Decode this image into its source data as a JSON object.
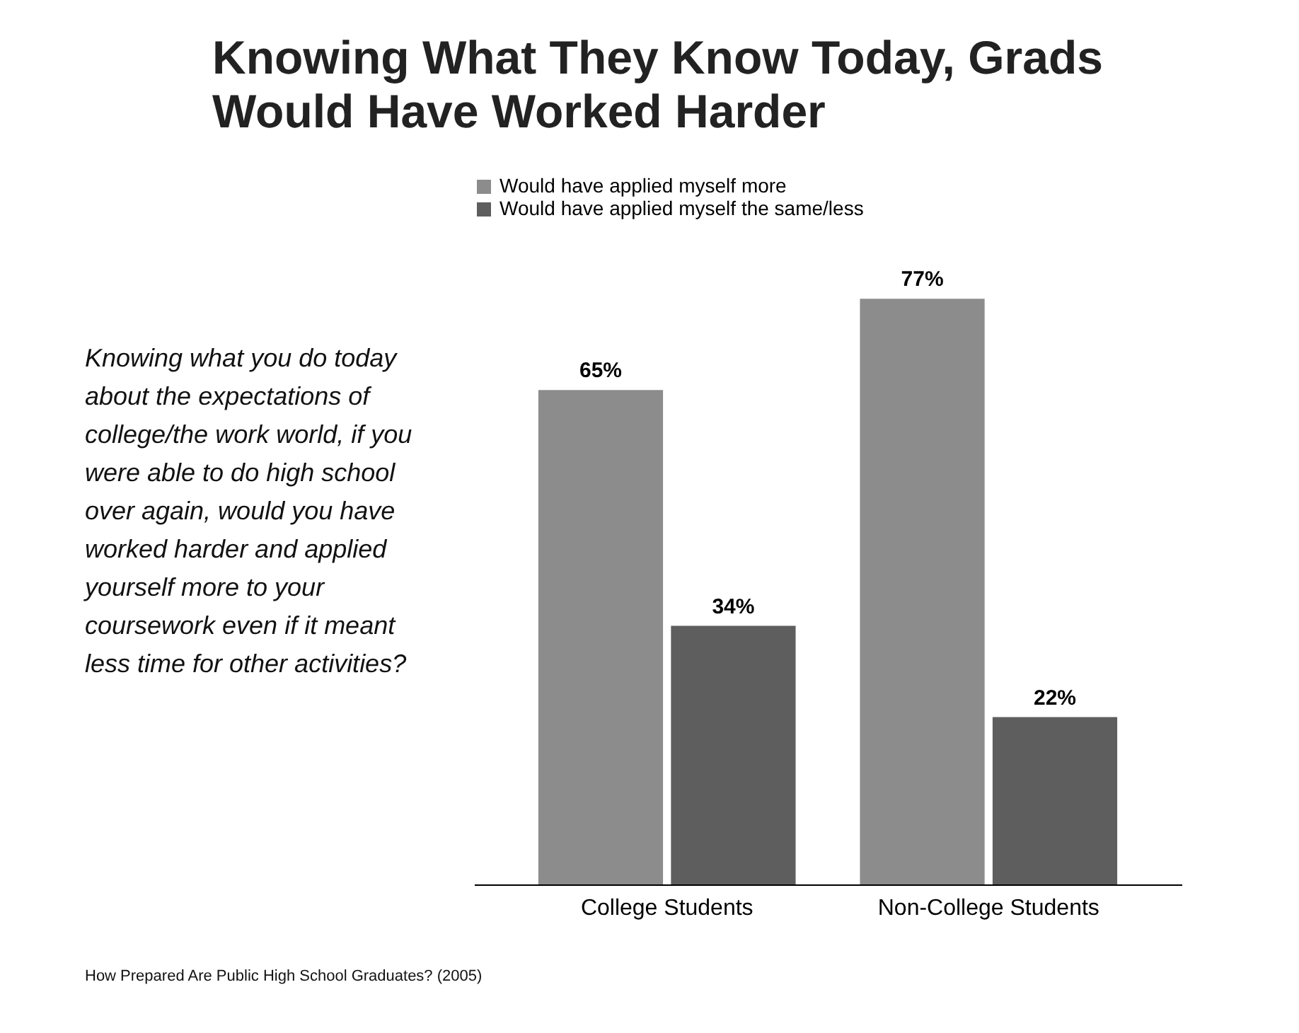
{
  "chart_data": {
    "type": "bar",
    "title": "Knowing What They Know Today, Grads Would Have Worked Harder",
    "categories": [
      "College Students",
      "Non-College Students"
    ],
    "series": [
      {
        "name": "Would have applied myself more",
        "color": "#8c8c8c",
        "values": [
          65,
          77
        ],
        "value_labels": [
          "65%",
          "77%"
        ]
      },
      {
        "name": "Would have applied myself the same/less",
        "color": "#5e5e5e",
        "values": [
          34,
          22
        ],
        "value_labels": [
          "34%",
          "22%"
        ]
      }
    ],
    "legend": "top",
    "tick_labels": "x",
    "annotations": [
      "Knowing what you do today about the expectations of college/the work world, if you were able to do high school over again, would you have worked harder and applied yourself more to your coursework even if it meant less time for other activities?",
      "How Prepared Are Public High School Graduates? (2005)"
    ]
  }
}
